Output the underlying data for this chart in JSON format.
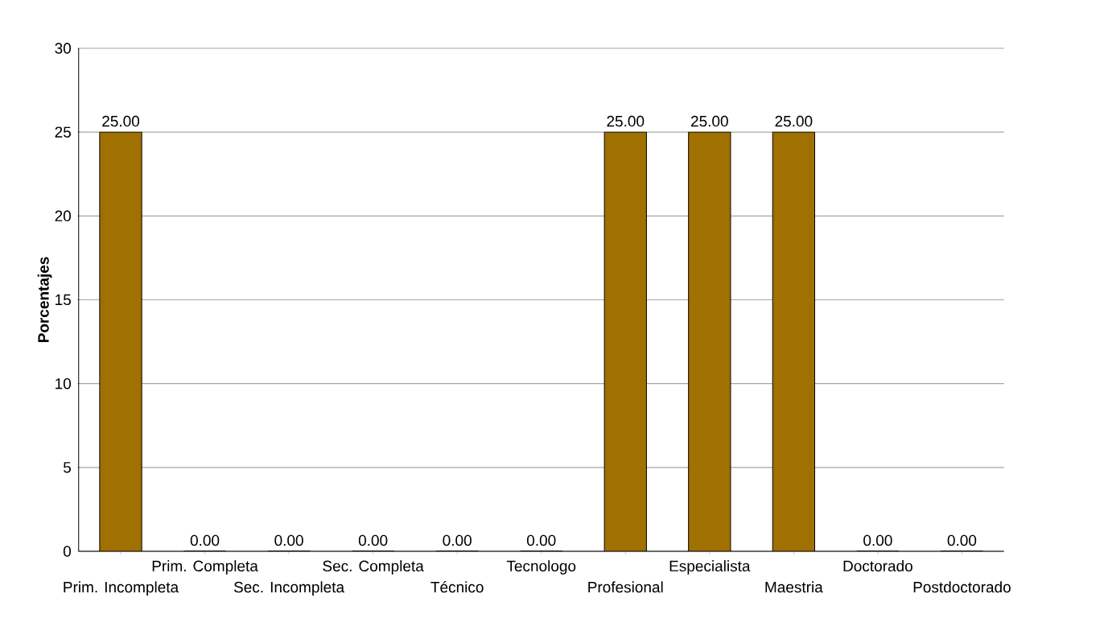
{
  "chart_data": {
    "type": "bar",
    "ylabel": "Porcentajes",
    "categories": [
      "Prim. Incompleta",
      "Prim. Completa",
      "Sec. Incompleta",
      "Sec. Completa",
      "Técnico",
      "Tecnologo",
      "Profesional",
      "Especialista",
      "Maestria",
      "Doctorado",
      "Postdoctorado"
    ],
    "values": [
      25,
      0,
      0,
      0,
      0,
      0,
      25,
      25,
      25,
      0,
      0
    ],
    "value_labels": [
      "25.00",
      "0.00",
      "0.00",
      "0.00",
      "0.00",
      "0.00",
      "25.00",
      "25.00",
      "25.00",
      "0.00",
      "0.00"
    ],
    "color": "#a07000",
    "ylim": [
      0,
      30
    ],
    "yticks": [
      0,
      5,
      10,
      15,
      20,
      25,
      30
    ],
    "grid": "y"
  }
}
